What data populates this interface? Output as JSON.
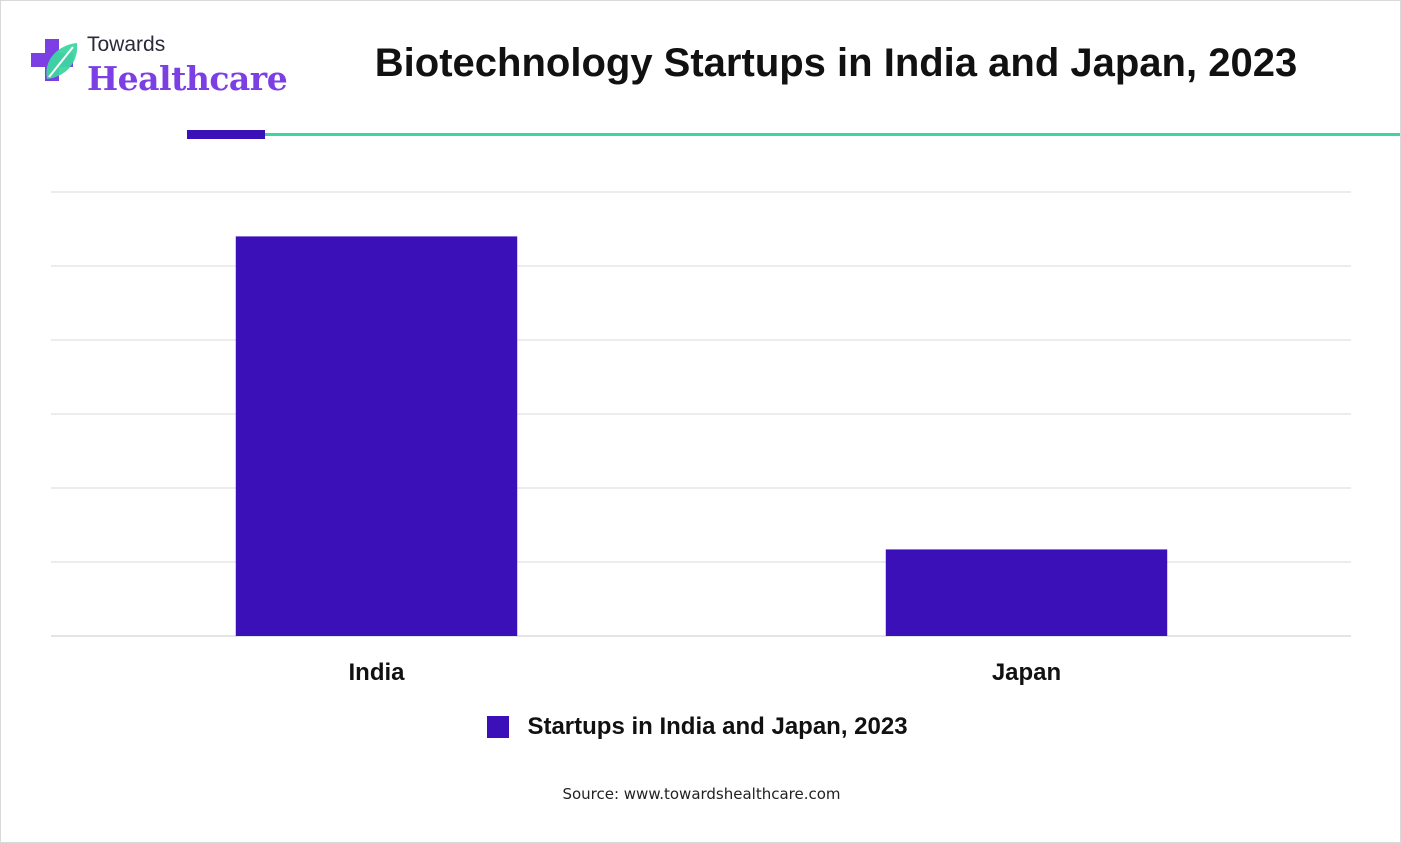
{
  "logo": {
    "top_text": "Towards",
    "bottom_text": "Healthcare",
    "icon": "medical-cross-leaf-icon"
  },
  "colors": {
    "bar": "#3c10b8",
    "brand_purple": "#7b3fe4",
    "accent_line": "#3dd6a0",
    "grid": "#d9d9d9"
  },
  "chart_data": {
    "type": "bar",
    "title": "Biotechnology Startups in India and Japan, 2023",
    "categories": [
      "India",
      "Japan"
    ],
    "series": [
      {
        "name": "Startups in India and Japan, 2023",
        "values": [
          5400,
          1170
        ]
      }
    ],
    "xlabel": "",
    "ylabel": "",
    "ylim": [
      0,
      6000
    ],
    "grid": true,
    "y_tick_labels_visible": false,
    "legend_position": "bottom"
  },
  "source": "Source: www.towardshealthcare.com"
}
